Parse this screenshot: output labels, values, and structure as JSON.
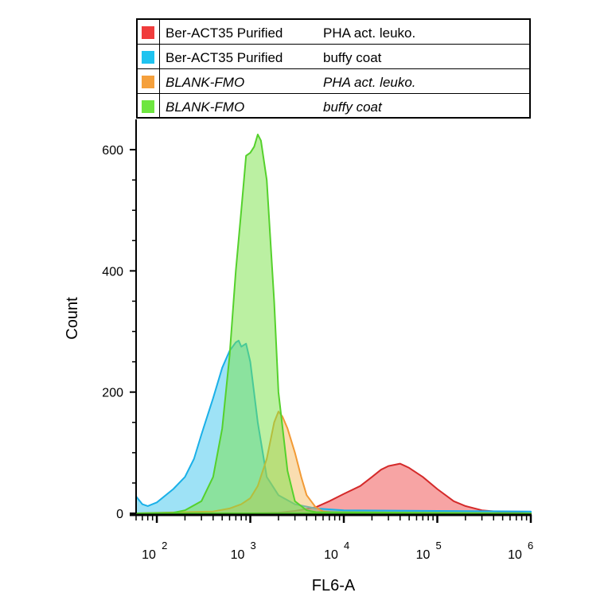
{
  "chart_data": {
    "type": "area",
    "xlabel": "FL6-A",
    "ylabel": "Count",
    "xscale": "log",
    "xlim": [
      60,
      1000000
    ],
    "ylim": [
      0,
      650
    ],
    "x_ticks": [
      {
        "base": "10",
        "exp": "2"
      },
      {
        "base": "10",
        "exp": "3"
      },
      {
        "base": "10",
        "exp": "4"
      },
      {
        "base": "10",
        "exp": "5"
      },
      {
        "base": "10",
        "exp": "6"
      }
    ],
    "y_ticks": [
      "0",
      "200",
      "400",
      "600"
    ],
    "legend": [
      {
        "name": "Ber-ACT35  Purified",
        "condition": "PHA act. leuko.",
        "italic": false,
        "color": "#f03c3c"
      },
      {
        "name": "Ber-ACT35  Purified",
        "condition": "buffy coat",
        "italic": false,
        "color": "#1ec3f0"
      },
      {
        "name": "BLANK-FMO",
        "condition": "PHA act. leuko.",
        "italic": true,
        "color": "#f5a03c"
      },
      {
        "name": "BLANK-FMO",
        "condition": "buffy coat",
        "italic": true,
        "color": "#6ee640"
      }
    ],
    "series": [
      {
        "index": 0,
        "fill": "rgba(240,90,90,0.55)",
        "stroke": "#d42a2a",
        "x": [
          60,
          1000,
          2000,
          3000,
          5000,
          7000,
          10000,
          15000,
          20000,
          25000,
          30000,
          40000,
          50000,
          70000,
          100000,
          150000,
          200000,
          300000,
          500000,
          1000000
        ],
        "y": [
          0,
          0,
          1,
          4,
          10,
          20,
          32,
          45,
          60,
          72,
          78,
          82,
          75,
          60,
          40,
          20,
          12,
          5,
          2,
          0
        ]
      },
      {
        "index": 1,
        "fill": "rgba(40,190,235,0.45)",
        "stroke": "#1ab0e8",
        "x": [
          60,
          70,
          80,
          100,
          150,
          200,
          250,
          300,
          400,
          500,
          600,
          700,
          750,
          800,
          900,
          1000,
          1200,
          1500,
          2000,
          3000,
          5000,
          10000,
          100000,
          1000000
        ],
        "y": [
          28,
          15,
          12,
          18,
          40,
          60,
          90,
          130,
          190,
          240,
          268,
          282,
          285,
          275,
          280,
          250,
          150,
          60,
          30,
          15,
          8,
          5,
          4,
          3
        ]
      },
      {
        "index": 2,
        "fill": "rgba(245,180,80,0.45)",
        "stroke": "#f29a35",
        "x": [
          60,
          400,
          600,
          800,
          1000,
          1200,
          1500,
          1800,
          2000,
          2200,
          2500,
          3000,
          3500,
          4000,
          5000,
          6000,
          10000,
          1000000
        ],
        "y": [
          0,
          3,
          8,
          15,
          25,
          45,
          90,
          150,
          168,
          160,
          140,
          100,
          60,
          30,
          10,
          3,
          0,
          0
        ]
      },
      {
        "index": 3,
        "fill": "rgba(120,225,70,0.5)",
        "stroke": "#55d12c",
        "x": [
          60,
          150,
          200,
          300,
          400,
          500,
          600,
          700,
          800,
          900,
          1000,
          1100,
          1200,
          1300,
          1500,
          1800,
          2000,
          2500,
          3000,
          4000,
          5000,
          1000000
        ],
        "y": [
          0,
          1,
          5,
          20,
          60,
          140,
          260,
          400,
          500,
          590,
          595,
          605,
          625,
          615,
          550,
          350,
          200,
          70,
          20,
          5,
          2,
          0
        ]
      }
    ]
  }
}
